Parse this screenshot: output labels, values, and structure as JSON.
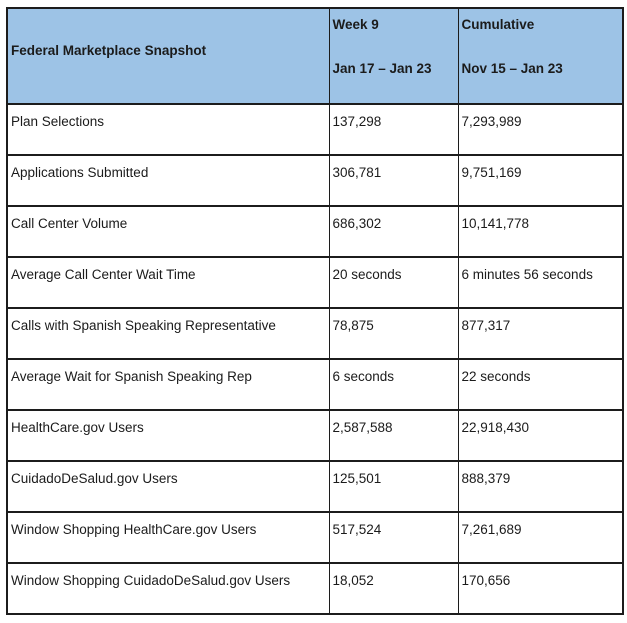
{
  "table": {
    "title_cell": "Federal Marketplace Snapshot",
    "columns": {
      "week": {
        "title": "Week 9",
        "range": "Jan 17 – Jan 23"
      },
      "cumulative": {
        "title": "Cumulative",
        "range": "Nov 15 – Jan 23"
      }
    },
    "rows": [
      {
        "label": "Plan Selections",
        "week": "137,298",
        "cumulative": "7,293,989"
      },
      {
        "label": "Applications Submitted",
        "week": "306,781",
        "cumulative": "9,751,169"
      },
      {
        "label": "Call Center Volume",
        "week": "686,302",
        "cumulative": "10,141,778"
      },
      {
        "label": "Average Call Center Wait Time",
        "week": "20 seconds",
        "cumulative": "6 minutes 56 seconds"
      },
      {
        "label": "Calls with Spanish Speaking Representative",
        "week": "78,875",
        "cumulative": "877,317"
      },
      {
        "label": "Average Wait for Spanish Speaking Rep",
        "week": "6 seconds",
        "cumulative": "22 seconds"
      },
      {
        "label": "HealthCare.gov Users",
        "week": "2,587,588",
        "cumulative": "22,918,430"
      },
      {
        "label": "CuidadoDeSalud.gov Users",
        "week": "125,501",
        "cumulative": "888,379"
      },
      {
        "label": "Window Shopping HealthCare.gov Users",
        "week": "517,524",
        "cumulative": "7,261,689"
      },
      {
        "label": "Window Shopping CuidadoDeSalud.gov Users",
        "week": "18,052",
        "cumulative": "170,656"
      }
    ],
    "colors": {
      "header_bg": "#9DC3E6",
      "border": "#1c1c1c",
      "text": "#1b1b1b"
    }
  }
}
